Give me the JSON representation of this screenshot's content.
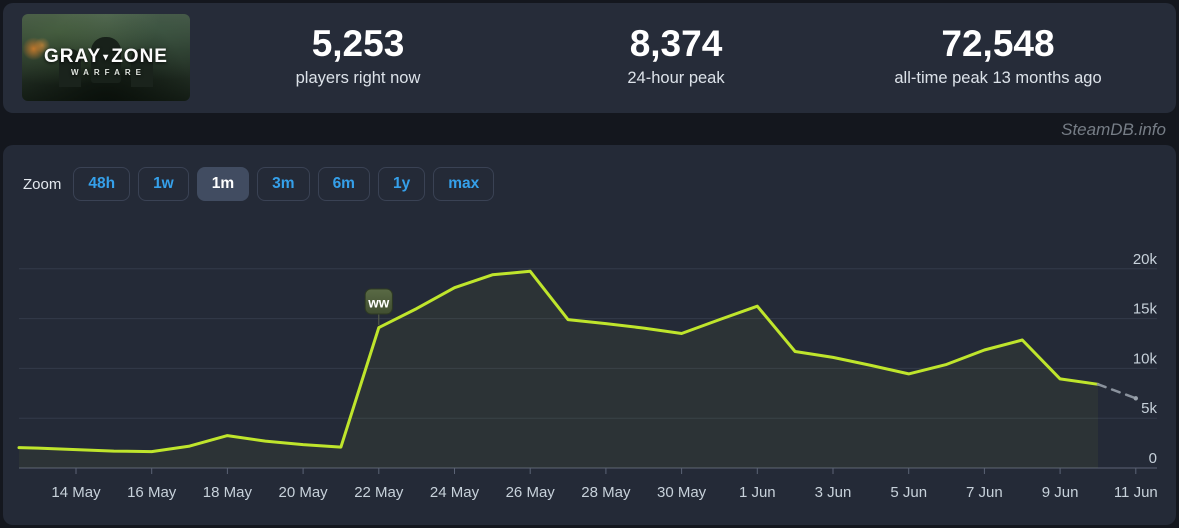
{
  "header": {
    "banner": {
      "game_title_left": "GRAY",
      "game_title_right": "ZONE",
      "game_subtitle": "WARFARE"
    },
    "stats": [
      {
        "value": "5,253",
        "label": "players right now"
      },
      {
        "value": "8,374",
        "label": "24-hour peak"
      },
      {
        "value": "72,548",
        "label": "all-time peak 13 months ago"
      }
    ]
  },
  "watermark": "SteamDB.info",
  "toolbar": {
    "zoom_label": "Zoom",
    "ranges": [
      {
        "label": "48h",
        "active": false
      },
      {
        "label": "1w",
        "active": false
      },
      {
        "label": "1m",
        "active": true
      },
      {
        "label": "3m",
        "active": false
      },
      {
        "label": "6m",
        "active": false
      },
      {
        "label": "1y",
        "active": false
      },
      {
        "label": "max",
        "active": false
      }
    ]
  },
  "chart_data": {
    "type": "line",
    "title": "",
    "xlabel": "",
    "ylabel": "",
    "grid": true,
    "legend": false,
    "ylim": [
      0,
      22500
    ],
    "dates": [
      "13 May",
      "14 May",
      "15 May",
      "16 May",
      "17 May",
      "18 May",
      "19 May",
      "20 May",
      "21 May",
      "22 May",
      "23 May",
      "24 May",
      "25 May",
      "26 May",
      "27 May",
      "28 May",
      "29 May",
      "30 May",
      "31 May",
      "1 Jun",
      "2 Jun",
      "3 Jun",
      "4 Jun",
      "5 Jun",
      "6 Jun",
      "7 Jun",
      "8 Jun",
      "9 Jun",
      "10 Jun",
      "11 Jun"
    ],
    "series": [
      {
        "name": "players",
        "values": [
          2000,
          1850,
          1700,
          1650,
          2200,
          3250,
          2700,
          2350,
          2100,
          14100,
          16000,
          18100,
          19400,
          19750,
          14900,
          14500,
          14050,
          13500,
          14900,
          16250,
          11700,
          11100,
          10300,
          9450,
          10400,
          11850,
          12850,
          8950,
          8400,
          7000
        ]
      }
    ],
    "edge_lead_value": 2050,
    "dashed_tail_segments": 1,
    "end_dot": true,
    "annotations": [
      {
        "index": 9,
        "date": "22 May",
        "label": "ww"
      }
    ],
    "x_ticks": [
      "14 May",
      "16 May",
      "18 May",
      "20 May",
      "22 May",
      "24 May",
      "26 May",
      "28 May",
      "30 May",
      "1 Jun",
      "3 Jun",
      "5 Jun",
      "7 Jun",
      "9 Jun",
      "11 Jun"
    ],
    "y_ticks": [
      {
        "value": 0,
        "label": "0"
      },
      {
        "value": 5000,
        "label": "5k"
      },
      {
        "value": 10000,
        "label": "10k"
      },
      {
        "value": 15000,
        "label": "15k"
      },
      {
        "value": 20000,
        "label": "20k"
      }
    ],
    "colors": {
      "line": "#bfe52c",
      "area": "rgba(190,229,44,0.05)",
      "dashed": "#8a929d",
      "end_dot": "#9aa2ac",
      "grid": "#333a4a",
      "axis": "#5b6375",
      "tick_label": "#c7d1da",
      "flag_bg_top": "#5a6a45",
      "flag_bg_bottom": "#414e31",
      "flag_border": "#2e3a22",
      "flag_text": "#ffffff",
      "accent_blue": "#35a0ea"
    }
  }
}
